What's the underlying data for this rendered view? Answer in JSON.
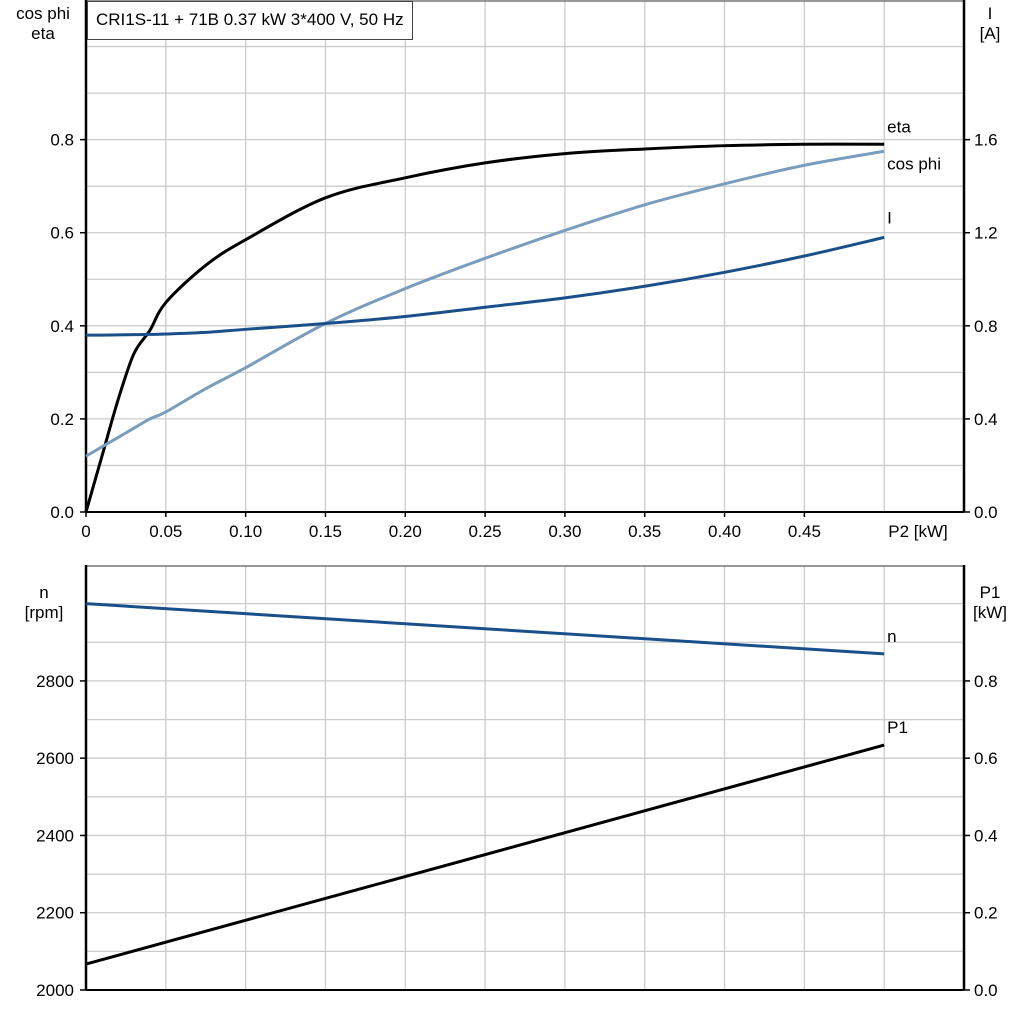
{
  "title": "CRI1S-11 + 71B   0.37 kW   3*400 V, 50 Hz",
  "chart_data": [
    {
      "type": "line",
      "xlabel": "P2 [kW]",
      "xlim": [
        0,
        0.55
      ],
      "xticks": [
        "0",
        "0.05",
        "0.10",
        "0.15",
        "0.20",
        "0.25",
        "0.30",
        "0.35",
        "0.40",
        "0.45"
      ],
      "ylabel_left": [
        "cos phi",
        "eta"
      ],
      "ylim_left": [
        0,
        1.1
      ],
      "yticks_left": [
        "0.0",
        "0.2",
        "0.4",
        "0.6",
        "0.8"
      ],
      "ylabel_right": [
        "I",
        "[A]"
      ],
      "ylim_right": [
        0,
        2.2
      ],
      "yticks_right": [
        "0.0",
        "0.4",
        "0.8",
        "1.2",
        "1.6"
      ],
      "grid": true,
      "x": [
        0,
        0.01,
        0.02,
        0.03,
        0.04,
        0.05,
        0.075,
        0.1,
        0.15,
        0.2,
        0.25,
        0.3,
        0.35,
        0.4,
        0.45,
        0.5
      ],
      "series": [
        {
          "name": "eta",
          "axis": "left",
          "color": "#000000",
          "values": [
            0,
            0.12,
            0.24,
            0.34,
            0.39,
            0.45,
            0.53,
            0.585,
            0.675,
            0.718,
            0.75,
            0.77,
            0.78,
            0.787,
            0.79,
            0.79
          ]
        },
        {
          "name": "cos phi",
          "axis": "left",
          "color": "#7a9dbd",
          "values": [
            0.12,
            0.14,
            0.16,
            0.18,
            0.2,
            0.215,
            0.265,
            0.31,
            0.405,
            0.48,
            0.545,
            0.605,
            0.66,
            0.705,
            0.745,
            0.775
          ]
        },
        {
          "name": "I",
          "axis": "right",
          "color": "#1a4f8a",
          "values": [
            0.76,
            0.76,
            0.761,
            0.762,
            0.763,
            0.765,
            0.772,
            0.785,
            0.81,
            0.84,
            0.88,
            0.92,
            0.97,
            1.03,
            1.1,
            1.18
          ]
        }
      ]
    },
    {
      "type": "line",
      "xlim": [
        0,
        0.55
      ],
      "ylabel_left": [
        "n",
        "[rpm]"
      ],
      "ylim_left": [
        2000,
        3100
      ],
      "yticks_left": [
        "2000",
        "2200",
        "2400",
        "2600",
        "2800"
      ],
      "ylabel_right": [
        "P1",
        "[kW]"
      ],
      "ylim_right": [
        0,
        1.1
      ],
      "yticks_right": [
        "0.0",
        "0.2",
        "0.4",
        "0.6",
        "0.8"
      ],
      "grid": true,
      "x": [
        0,
        0.5
      ],
      "series": [
        {
          "name": "n",
          "axis": "left",
          "color": "#1a4f8a",
          "values": [
            3000,
            2870
          ]
        },
        {
          "name": "P1",
          "axis": "right",
          "color": "#000000",
          "values": [
            0.067,
            0.634
          ]
        }
      ]
    }
  ]
}
